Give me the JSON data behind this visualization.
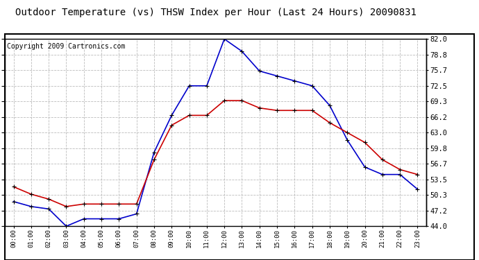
{
  "title": "Outdoor Temperature (vs) THSW Index per Hour (Last 24 Hours) 20090831",
  "copyright": "Copyright 2009 Cartronics.com",
  "hours": [
    "00:00",
    "01:00",
    "02:00",
    "03:00",
    "04:00",
    "05:00",
    "06:00",
    "07:00",
    "08:00",
    "09:00",
    "10:00",
    "11:00",
    "12:00",
    "13:00",
    "14:00",
    "15:00",
    "16:00",
    "17:00",
    "18:00",
    "19:00",
    "20:00",
    "21:00",
    "22:00",
    "23:00"
  ],
  "temp": [
    52.0,
    50.5,
    49.5,
    48.0,
    48.5,
    48.5,
    48.5,
    48.5,
    57.5,
    64.5,
    66.5,
    66.5,
    69.5,
    69.5,
    68.0,
    67.5,
    67.5,
    67.5,
    65.0,
    63.0,
    61.0,
    57.5,
    55.5,
    54.5
  ],
  "thsw": [
    49.0,
    48.0,
    47.5,
    44.0,
    45.5,
    45.5,
    45.5,
    46.5,
    59.0,
    66.5,
    72.5,
    72.5,
    82.0,
    79.5,
    75.5,
    74.5,
    73.5,
    72.5,
    68.5,
    61.5,
    56.0,
    54.5,
    54.5,
    51.5
  ],
  "ylim": [
    44.0,
    82.0
  ],
  "yticks": [
    44.0,
    47.2,
    50.3,
    53.5,
    56.7,
    59.8,
    63.0,
    66.2,
    69.3,
    72.5,
    75.7,
    78.8,
    82.0
  ],
  "ytick_labels": [
    "44.0",
    "47.2",
    "50.3",
    "53.5",
    "56.7",
    "59.8",
    "63.0",
    "66.2",
    "69.3",
    "72.5",
    "75.7",
    "78.8",
    "82.0"
  ],
  "temp_color": "#cc0000",
  "thsw_color": "#0000cc",
  "bg_color": "#ffffff",
  "grid_color": "#aaaaaa",
  "title_fontsize": 10,
  "copyright_fontsize": 7
}
